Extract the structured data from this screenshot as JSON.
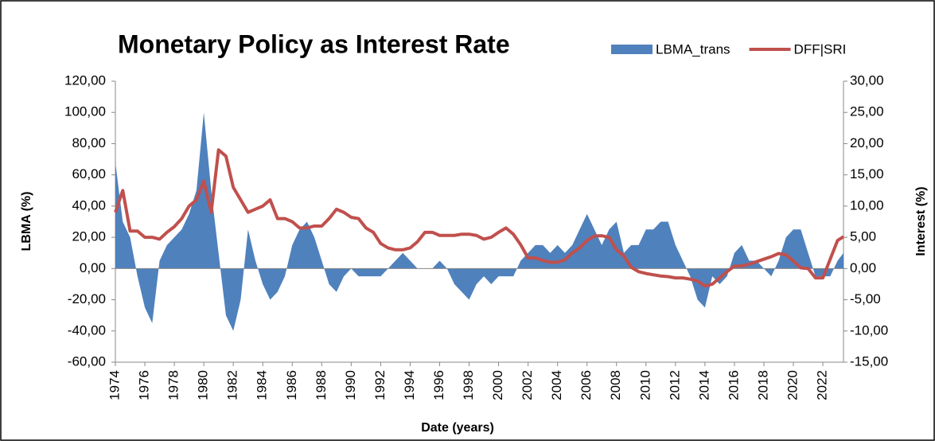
{
  "chart_data": {
    "type": "combo",
    "title": "Monetary Policy as Interest Rate",
    "x_label": "Date (years)",
    "y_label": "LBMA (%)",
    "y2_label": "Interest (%)",
    "x": [
      1974,
      1974.5,
      1975,
      1975.5,
      1976,
      1976.5,
      1977,
      1977.5,
      1978,
      1978.5,
      1979,
      1979.5,
      1980,
      1980.5,
      1981,
      1981.5,
      1982,
      1982.5,
      1983,
      1983.5,
      1984,
      1984.5,
      1985,
      1985.5,
      1986,
      1986.5,
      1987,
      1987.5,
      1988,
      1988.5,
      1989,
      1989.5,
      1990,
      1990.5,
      1991,
      1991.5,
      1992,
      1992.5,
      1993,
      1993.5,
      1994,
      1994.5,
      1995,
      1995.5,
      1996,
      1996.5,
      1997,
      1997.5,
      1998,
      1998.5,
      1999,
      1999.5,
      2000,
      2000.5,
      2001,
      2001.5,
      2002,
      2002.5,
      2003,
      2003.5,
      2004,
      2004.5,
      2005,
      2005.5,
      2006,
      2006.5,
      2007,
      2007.5,
      2008,
      2008.5,
      2009,
      2009.5,
      2010,
      2010.5,
      2011,
      2011.5,
      2012,
      2012.5,
      2013,
      2013.5,
      2014,
      2014.5,
      2015,
      2015.5,
      2016,
      2016.5,
      2017,
      2017.5,
      2018,
      2018.5,
      2019,
      2019.5,
      2020,
      2020.5,
      2021,
      2021.5,
      2022,
      2022.5,
      2023,
      2023.4
    ],
    "series": [
      {
        "name": "LBMA_trans",
        "type": "area",
        "color": "#4f81bd",
        "axis": "y",
        "values": [
          68,
          30,
          20,
          -5,
          -25,
          -35,
          5,
          15,
          20,
          25,
          35,
          50,
          100,
          50,
          10,
          -30,
          -40,
          -20,
          25,
          5,
          -10,
          -20,
          -15,
          -5,
          15,
          25,
          30,
          20,
          5,
          -10,
          -15,
          -5,
          0,
          -5,
          -5,
          -5,
          -5,
          0,
          5,
          10,
          5,
          0,
          0,
          0,
          5,
          0,
          -10,
          -15,
          -20,
          -10,
          -5,
          -10,
          -5,
          -5,
          -5,
          5,
          10,
          15,
          15,
          10,
          15,
          10,
          15,
          25,
          35,
          25,
          15,
          25,
          30,
          10,
          15,
          15,
          25,
          25,
          30,
          30,
          15,
          5,
          -5,
          -20,
          -25,
          -5,
          -10,
          -5,
          10,
          15,
          5,
          5,
          0,
          -5,
          5,
          20,
          25,
          25,
          10,
          -5,
          -5,
          -5,
          5,
          10
        ]
      },
      {
        "name": "DFF|SRI",
        "type": "line",
        "color": "#c0504d",
        "axis": "y2",
        "values": [
          9,
          12.5,
          6,
          6,
          5,
          5,
          4.7,
          5.8,
          6.7,
          8,
          10,
          11,
          14,
          9,
          19,
          18,
          13,
          11,
          9,
          9.5,
          10,
          11,
          8,
          8,
          7.5,
          6.5,
          6.5,
          6.8,
          6.8,
          8,
          9.5,
          9,
          8.2,
          8,
          6.5,
          5.8,
          4,
          3.3,
          3,
          3,
          3.3,
          4.3,
          5.8,
          5.8,
          5.3,
          5.3,
          5.3,
          5.5,
          5.5,
          5.3,
          4.7,
          5,
          5.8,
          6.5,
          5.5,
          3.8,
          1.7,
          1.7,
          1.3,
          1,
          1,
          1.4,
          2.5,
          3.3,
          4.5,
          5.2,
          5.25,
          5,
          3,
          2,
          0.2,
          -0.5,
          -0.8,
          -1,
          -1.2,
          -1.3,
          -1.5,
          -1.5,
          -1.7,
          -2,
          -2.8,
          -2.5,
          -1.5,
          -0.5,
          0.4,
          0.4,
          0.7,
          1.1,
          1.5,
          1.9,
          2.4,
          2.2,
          1.2,
          0.1,
          0,
          -1.5,
          -1.5,
          1.5,
          4.5,
          5.1
        ]
      }
    ],
    "xlim": [
      1974,
      2023.4
    ],
    "xticks": [
      1974,
      1976,
      1978,
      1980,
      1982,
      1984,
      1986,
      1988,
      1990,
      1992,
      1994,
      1996,
      1998,
      2000,
      2002,
      2004,
      2006,
      2008,
      2010,
      2012,
      2014,
      2016,
      2018,
      2020,
      2022
    ],
    "ylim": [
      -60,
      120
    ],
    "yticks": [
      {
        "value": 120,
        "label": "120,00"
      },
      {
        "value": 100,
        "label": "100,00"
      },
      {
        "value": 80,
        "label": "80,00"
      },
      {
        "value": 60,
        "label": "60,00"
      },
      {
        "value": 40,
        "label": "40,00"
      },
      {
        "value": 20,
        "label": "20,00"
      },
      {
        "value": 0,
        "label": "0,00"
      },
      {
        "value": -20,
        "label": "-20,00"
      },
      {
        "value": -40,
        "label": "-40,00"
      },
      {
        "value": -60,
        "label": "-60,00"
      }
    ],
    "y2lim": [
      -15,
      30
    ],
    "y2ticks": [
      {
        "value": 30,
        "label": "30,00"
      },
      {
        "value": 25,
        "label": "25,00"
      },
      {
        "value": 20,
        "label": "20,00"
      },
      {
        "value": 15,
        "label": "15,00"
      },
      {
        "value": 10,
        "label": "10,00"
      },
      {
        "value": 5,
        "label": "5,00"
      },
      {
        "value": 0,
        "label": "0,00"
      },
      {
        "value": -5,
        "label": "-5,00"
      },
      {
        "value": -10,
        "label": "-10,00"
      },
      {
        "value": -15,
        "label": "-15,00"
      }
    ]
  }
}
